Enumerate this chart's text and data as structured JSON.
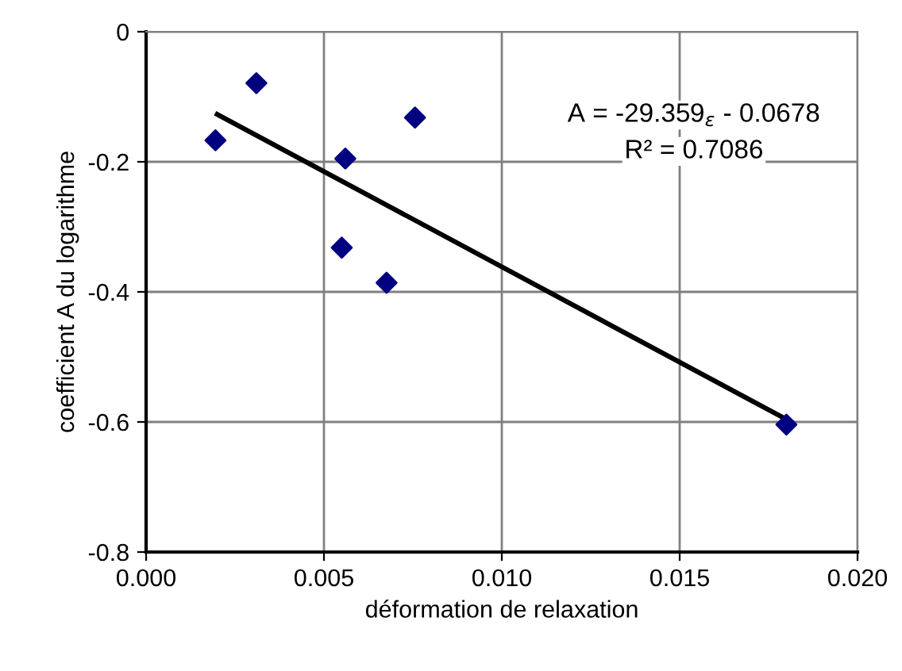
{
  "chart_data": {
    "type": "scatter",
    "xlabel": "déformation de relaxation",
    "ylabel": "coefficient A du logarithme",
    "xlim": [
      0.0,
      0.02
    ],
    "xticks": [
      {
        "value": 0.0,
        "label": "0.000"
      },
      {
        "value": 0.005,
        "label": "0.005"
      },
      {
        "value": 0.01,
        "label": "0.010"
      },
      {
        "value": 0.015,
        "label": "0.015"
      },
      {
        "value": 0.02,
        "label": "0.020"
      }
    ],
    "ylim": [
      -0.8,
      0
    ],
    "yticks": [
      {
        "value": -0.8,
        "label": "-0.8"
      },
      {
        "value": -0.6,
        "label": "-0.6"
      },
      {
        "value": -0.4,
        "label": "-0.4"
      },
      {
        "value": -0.2,
        "label": "-0.2"
      },
      {
        "value": 0,
        "label": "0"
      }
    ],
    "grid": true,
    "series": [
      {
        "marker": "diamond",
        "color": "#000080",
        "x": [
          0.00195,
          0.0031,
          0.0056,
          0.0055,
          0.00676,
          0.00756,
          0.018
        ],
        "values": [
          -0.167,
          -0.079,
          -0.195,
          -0.332,
          -0.386,
          -0.132,
          -0.604
        ]
      },
      {
        "type": "line",
        "marker": "none",
        "color": "#000000",
        "x": [
          0.002,
          0.018
        ],
        "values": [
          -0.127,
          -0.596
        ]
      }
    ],
    "annotations": [
      "A = -29.359$_{ε}$ - 0.0678",
      "R² = 0.7086"
    ]
  }
}
